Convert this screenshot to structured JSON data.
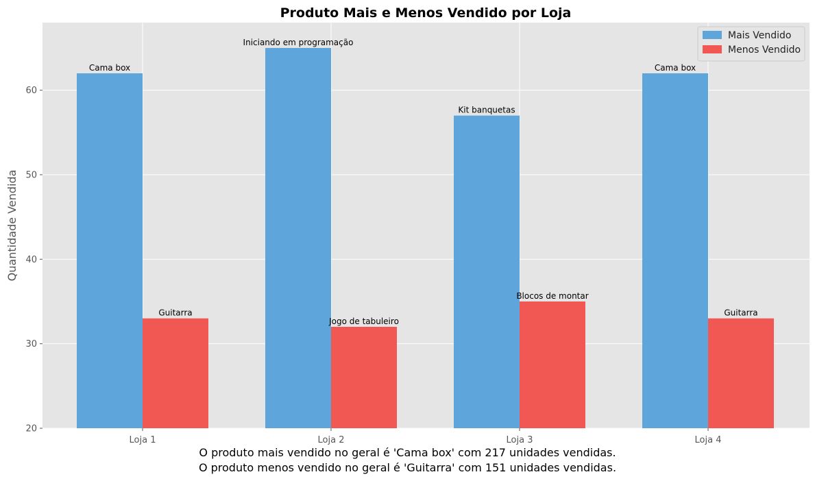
{
  "chart_data": {
    "type": "bar",
    "title": "Produto Mais e Menos Vendido por Loja",
    "xlabel": "",
    "ylabel": "Quantidade Vendida",
    "categories": [
      "Loja 1",
      "Loja 2",
      "Loja 3",
      "Loja 4"
    ],
    "ylim": [
      20,
      68
    ],
    "yticks": [
      20,
      30,
      40,
      50,
      60
    ],
    "grid": true,
    "legend_position": "top-right",
    "series": [
      {
        "name": "Mais Vendido",
        "color": "#5DA5DA",
        "values": [
          62,
          65,
          57,
          62
        ],
        "labels": [
          "Cama box",
          "Iniciando em programação",
          "Kit banquetas",
          "Cama box"
        ]
      },
      {
        "name": "Menos Vendido",
        "color": "#F15854",
        "values": [
          33,
          32,
          35,
          33
        ],
        "labels": [
          "Guitarra",
          "Jogo de tabuleiro",
          "Blocos de montar",
          "Guitarra"
        ]
      }
    ]
  },
  "caption": {
    "line1": "O produto mais vendido no geral é 'Cama box' com 217 unidades vendidas.",
    "line2": "O produto menos vendido no geral é 'Guitarra' com 151 unidades vendidas."
  }
}
